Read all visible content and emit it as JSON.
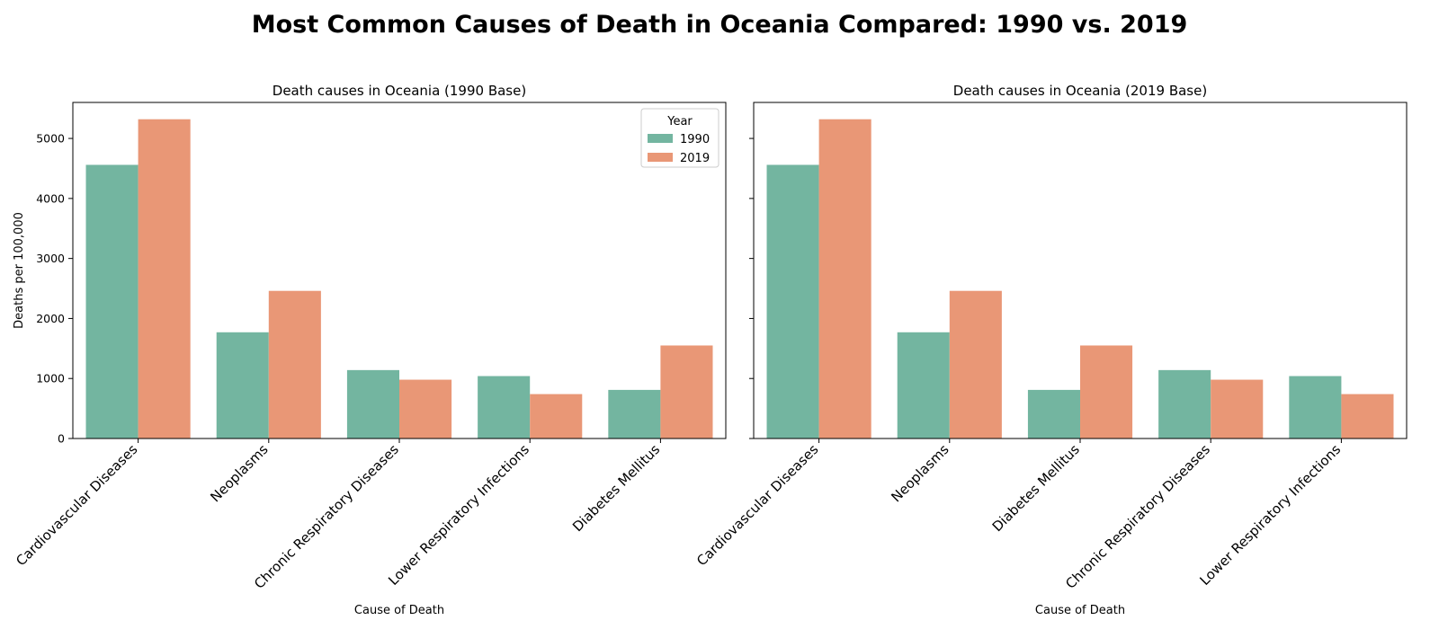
{
  "title": "Most Common Causes of Death in Oceania Compared: 1990 vs. 2019",
  "colors": {
    "1990": "#73b5a0",
    "2019": "#e99776"
  },
  "legend": {
    "title": "Year",
    "placement": "upper right"
  },
  "chart_data": [
    {
      "type": "bar",
      "title": "Death causes in Oceania (1990 Base)",
      "xlabel": "Cause of Death",
      "ylabel": "Deaths per 100,000",
      "ylim": [
        0,
        5600
      ],
      "yticks": [
        0,
        1000,
        2000,
        3000,
        4000,
        5000
      ],
      "categories": [
        "Cardiovascular Diseases",
        "Neoplasms",
        "Chronic Respiratory Diseases",
        "Lower Respiratory Infections",
        "Diabetes Mellitus"
      ],
      "series": [
        {
          "name": "1990",
          "values": [
            4560,
            1770,
            1140,
            1040,
            810
          ]
        },
        {
          "name": "2019",
          "values": [
            5320,
            2460,
            980,
            740,
            1550
          ]
        }
      ],
      "legend": true
    },
    {
      "type": "bar",
      "title": "Death causes in Oceania (2019 Base)",
      "xlabel": "Cause of Death",
      "ylabel": "",
      "ylim": [
        0,
        5600
      ],
      "yticks": [
        0,
        1000,
        2000,
        3000,
        4000,
        5000
      ],
      "categories": [
        "Cardiovascular Diseases",
        "Neoplasms",
        "Diabetes Mellitus",
        "Chronic Respiratory Diseases",
        "Lower Respiratory Infections"
      ],
      "series": [
        {
          "name": "1990",
          "values": [
            4560,
            1770,
            810,
            1140,
            1040
          ]
        },
        {
          "name": "2019",
          "values": [
            5320,
            2460,
            1550,
            980,
            740
          ]
        }
      ],
      "legend": false
    }
  ]
}
